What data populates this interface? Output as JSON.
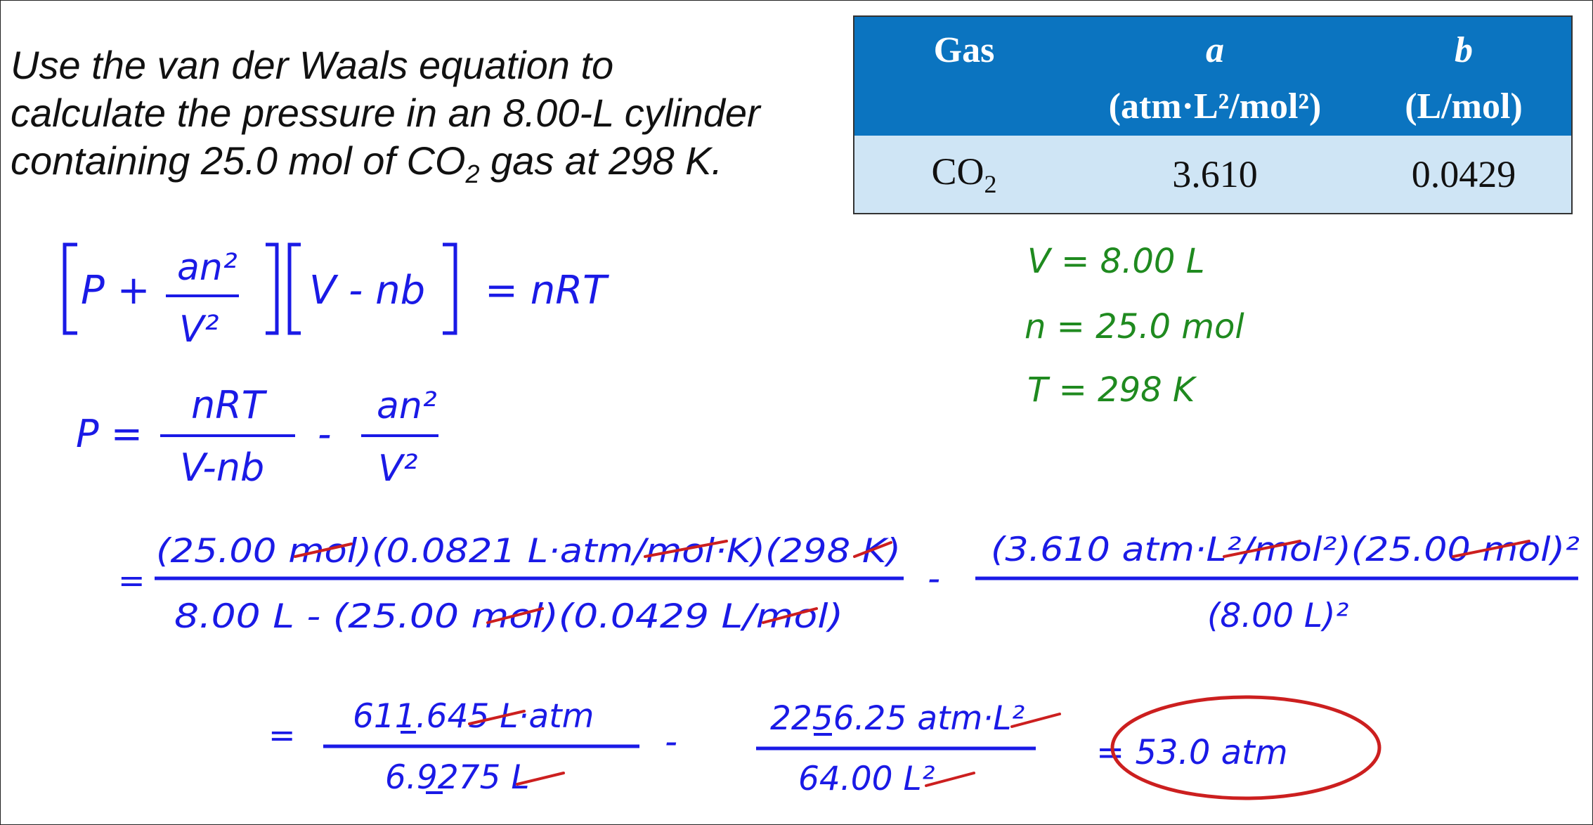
{
  "problem": {
    "line1": "Use the van der Waals equation to",
    "line2": "calculate the pressure in an 8.00-L cylinder",
    "line3_a": "containing 25.0 mol of CO",
    "line3_sub": "2",
    "line3_b": " gas at 298 K."
  },
  "constants_table": {
    "headers": {
      "gas": "Gas",
      "a_symbol": "a",
      "a_unit": "(atm·L²/mol²)",
      "b_symbol": "b",
      "b_unit": "(L/mol)"
    },
    "row": {
      "gas": "CO",
      "gas_sub": "2",
      "a": "3.610",
      "b": "0.0429"
    }
  },
  "given": {
    "V": "V = 8.00 L",
    "n": "n = 25.0 mol",
    "T": "T = 298 K"
  },
  "equation": {
    "P_plus": "P +",
    "an2": "an²",
    "V2": "V²",
    "V_minus_nb": "V - nb",
    "equals_nRT": "= nRT"
  },
  "rearranged": {
    "P_eq": "P =",
    "nRT": "nRT",
    "V_nb": "V-nb",
    "minus": "-",
    "an2": "an²",
    "V2": "V²"
  },
  "substitution": {
    "eq": "=",
    "num1": "(25.00 mol)(0.0821 L·atm/mol·K)(298 K)",
    "den1": "8.00 L - (25.00 mol)(0.0429 L/mol)",
    "minus": "-",
    "num2": "(3.610 atm·L²/mol²)(25.00 mol)²",
    "den2": "(8.00 L)²"
  },
  "evaluation": {
    "eq": "=",
    "num1": "611.645 L·atm",
    "den1": "6.9275 L",
    "minus": "-",
    "num2": "2256.25 atm·L²",
    "den2": "64.00 L²",
    "result": "= 53.0 atm"
  },
  "colors": {
    "ink_blue": "#1a1ae6",
    "ink_green": "#1f8a1f",
    "ink_red": "#cc1f1f",
    "table_header": "#0b74c0",
    "table_row": "#cfe5f5"
  }
}
